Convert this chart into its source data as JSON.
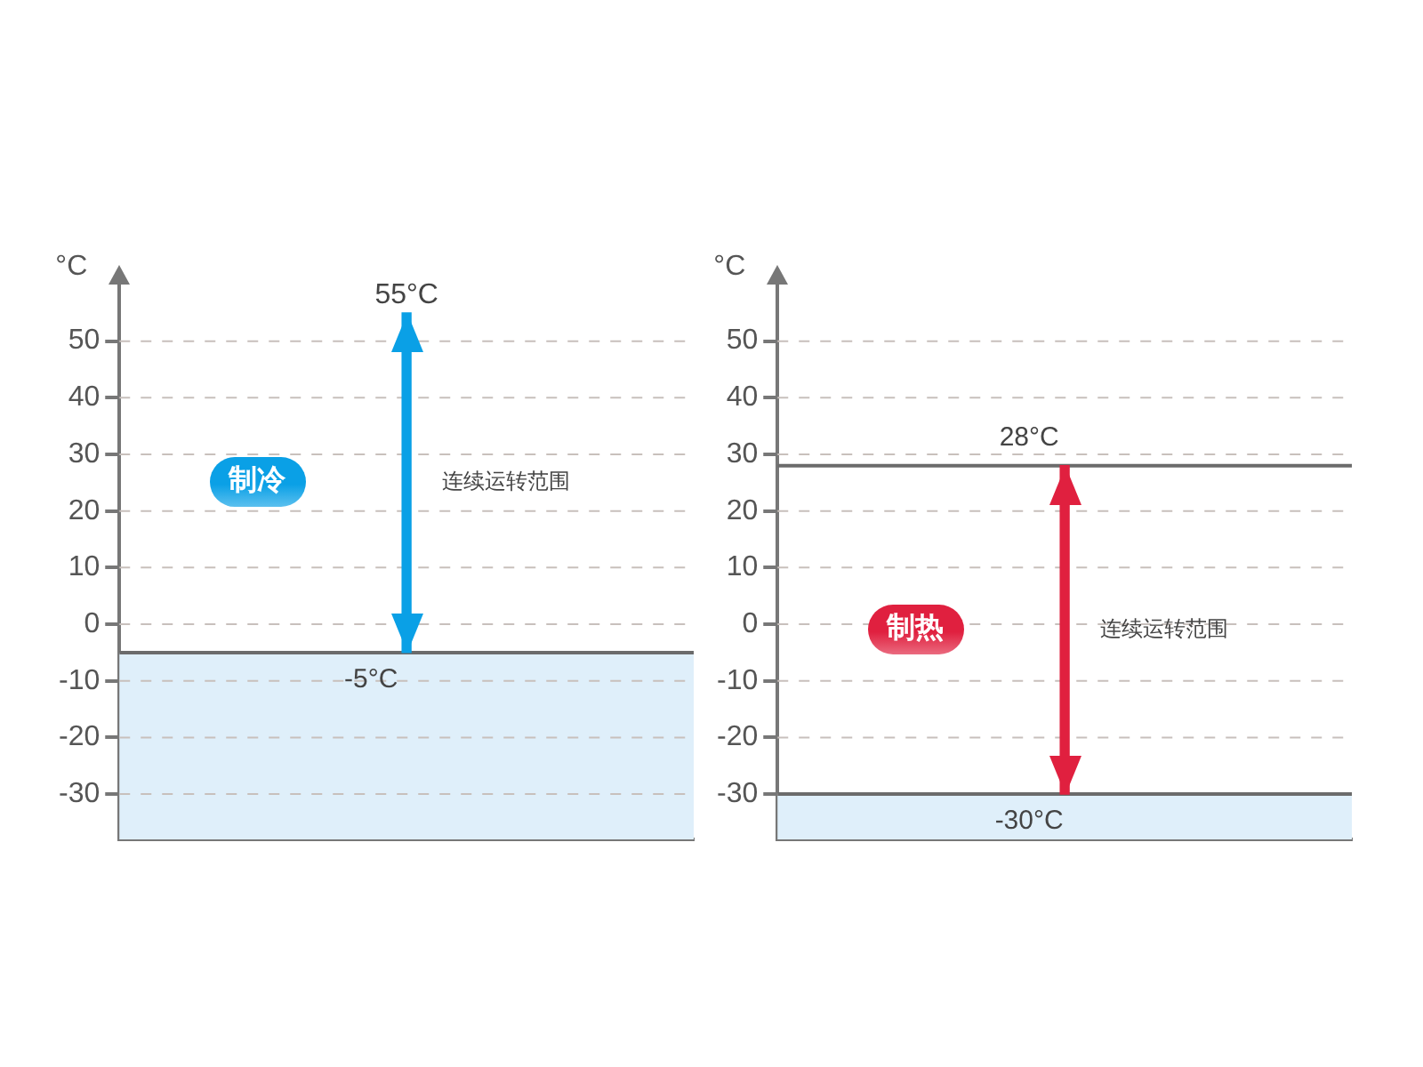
{
  "chart_data": [
    {
      "type": "bar",
      "ylabel": "°C",
      "categories": [
        null
      ],
      "series": [
        {
          "color": "#0aa0e6",
          "base": [
            -5
          ],
          "values": [
            60
          ]
        }
      ],
      "ylim": [
        -38,
        60
      ],
      "yticks": [
        -30,
        -20,
        -10,
        0,
        10,
        20,
        30,
        40,
        50
      ],
      "grid": "y",
      "legend": false,
      "tick_labels": "y",
      "bands": [
        {
          "axis": "y",
          "from": -38,
          "to": -5,
          "color": "#dfeffa"
        }
      ],
      "ref_lines": [
        {
          "axis": "y",
          "value": -5,
          "label": "-5°C",
          "color": "#6b6b6b"
        }
      ],
      "annotations": [
        "制冷",
        "连续运转范围",
        "55°C"
      ]
    },
    {
      "type": "bar",
      "ylabel": "°C",
      "categories": [
        null
      ],
      "series": [
        {
          "color": "#e0203f",
          "base": [
            -30
          ],
          "values": [
            58
          ]
        }
      ],
      "ylim": [
        -38,
        60
      ],
      "yticks": [
        -30,
        -20,
        -10,
        0,
        10,
        20,
        30,
        40,
        50
      ],
      "grid": "y",
      "legend": false,
      "tick_labels": "y",
      "bands": [
        {
          "axis": "y",
          "from": -38,
          "to": -30,
          "color": "#dfeffa"
        }
      ],
      "ref_lines": [
        {
          "axis": "y",
          "value": 28,
          "label": "28°C",
          "color": "#6b6b6b"
        },
        {
          "axis": "y",
          "value": -30,
          "label": "-30°C",
          "color": "#6b6b6b"
        }
      ],
      "annotations": [
        "制热",
        "连续运转范围"
      ]
    }
  ]
}
